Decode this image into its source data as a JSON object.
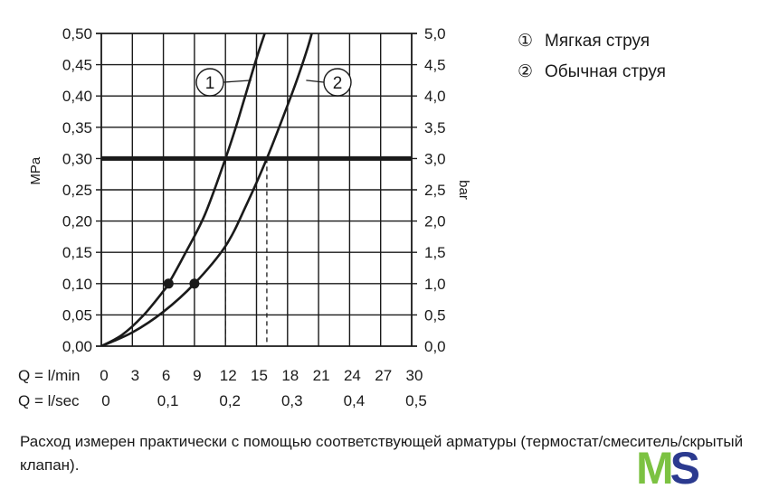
{
  "chart_data": {
    "type": "line",
    "title": "",
    "ylabel_left": "MPa",
    "ylabel_right": "bar",
    "xlabel_rows": [
      "Q = l/min",
      "Q = l/sec"
    ],
    "x_ticks_lmin": [
      "0",
      "3",
      "6",
      "9",
      "12",
      "15",
      "18",
      "21",
      "24",
      "27",
      "30"
    ],
    "x_ticks_lsec": [
      "0",
      "0,1",
      "0,2",
      "0,3",
      "0,4",
      "0,5"
    ],
    "y_ticks_mpa": [
      "0,00",
      "0,05",
      "0,10",
      "0,15",
      "0,20",
      "0,25",
      "0,30",
      "0,35",
      "0,40",
      "0,45",
      "0,50"
    ],
    "y_ticks_bar": [
      "0,0",
      "0,5",
      "1,0",
      "1,5",
      "2,0",
      "2,5",
      "3,0",
      "3,5",
      "4,0",
      "4,5",
      "5,0"
    ],
    "xlim": [
      0,
      30
    ],
    "ylim": [
      0,
      0.5
    ],
    "grid": true,
    "reference_line": {
      "y": 0.3
    },
    "series": [
      {
        "id": "1",
        "marker_label": "1",
        "x": [
          0,
          2,
          4,
          6,
          6.5,
          8,
          10,
          12,
          13,
          14,
          15,
          16
        ],
        "y": [
          0,
          0.018,
          0.048,
          0.088,
          0.1,
          0.145,
          0.21,
          0.3,
          0.35,
          0.405,
          0.46,
          0.51
        ],
        "point": {
          "x": 6.5,
          "y": 0.1
        }
      },
      {
        "id": "2",
        "marker_label": "2",
        "x": [
          0,
          3,
          6,
          9,
          12,
          14,
          16,
          18,
          19,
          20,
          20.5
        ],
        "y": [
          0,
          0.022,
          0.055,
          0.1,
          0.16,
          0.225,
          0.3,
          0.385,
          0.43,
          0.48,
          0.51
        ],
        "point": {
          "x": 9,
          "y": 0.1
        }
      }
    ],
    "legend": {
      "placement": "right",
      "items": [
        {
          "mark": "①",
          "label": "Мягкая струя"
        },
        {
          "mark": "②",
          "label": "Обычная струя"
        }
      ]
    }
  },
  "caption": "Расход измерен практически с помощью соответствующей арматуры (термостат/смеситель/скрытый клапан).",
  "logo": {
    "m": "M",
    "s": "S"
  },
  "colors": {
    "ink": "#1a1a1a",
    "logo_green": "#7cc242",
    "logo_blue": "#2b3a8f"
  }
}
